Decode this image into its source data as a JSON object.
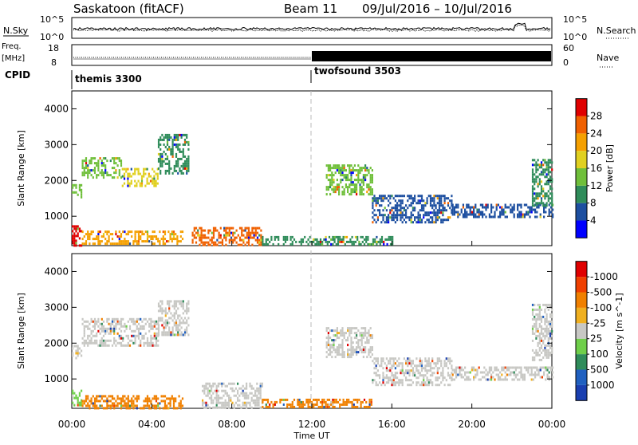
{
  "header": {
    "station": "Saskatoon (fitACF)",
    "beam": "Beam 11",
    "dates": "09/Jul/2016 – 10/Jul/2016"
  },
  "top_panels": {
    "nsky_label": "N.Sky",
    "nsky_ticks": [
      "10^5",
      "10^0"
    ],
    "nsearch_label": "N.Search",
    "nsearch_ticks": [
      "10^5",
      "10^0"
    ],
    "freq_label": "Freq.",
    "freq_unit": "[MHz]",
    "freq_ticks": [
      "18",
      "8"
    ],
    "nave_label": "Nave",
    "nave_ticks": [
      "60",
      "0"
    ],
    "cpid_label": "CPID",
    "modes": [
      {
        "name": "themis 3300",
        "start": 0,
        "end": 12
      },
      {
        "name": "twofsound 3503",
        "start": 12,
        "end": 24
      }
    ]
  },
  "chart_data": [
    {
      "type": "heatmap",
      "panel": "power",
      "ylabel": "Slant Range [km]",
      "xlabel": "Time UT",
      "x_range": [
        0,
        24
      ],
      "y_range": [
        180,
        4500
      ],
      "x_ticks": [
        "00:00",
        "04:00",
        "08:00",
        "12:00",
        "16:00",
        "20:00",
        "00:00"
      ],
      "y_ticks": [
        1000,
        2000,
        3000,
        4000
      ],
      "colorbar": {
        "label": "Power [dB]",
        "ticks": [
          4,
          8,
          12,
          16,
          20,
          24,
          28
        ],
        "colors": [
          "#0000ff",
          "#1d4fa0",
          "#2f8c5a",
          "#6fbf3a",
          "#e0d020",
          "#f5a000",
          "#f06000",
          "#e00000"
        ]
      },
      "echo_bands": [
        {
          "t0": 0.0,
          "t1": 0.5,
          "r0": 1500,
          "r1": 1900,
          "level": 12
        },
        {
          "t0": 0.5,
          "t1": 2.5,
          "r0": 2100,
          "r1": 2650,
          "level": 14
        },
        {
          "t0": 2.5,
          "t1": 4.3,
          "r0": 1850,
          "r1": 2350,
          "level": 18
        },
        {
          "t0": 4.3,
          "t1": 5.8,
          "r0": 2200,
          "r1": 3300,
          "level": 10
        },
        {
          "t0": 0.0,
          "t1": 0.5,
          "r0": 200,
          "r1": 750,
          "level": 28
        },
        {
          "t0": 0.5,
          "t1": 5.5,
          "r0": 200,
          "r1": 600,
          "level": 22
        },
        {
          "t0": 6.0,
          "t1": 9.5,
          "r0": 200,
          "r1": 700,
          "level": 24
        },
        {
          "t0": 9.5,
          "t1": 16.0,
          "r0": 200,
          "r1": 450,
          "level": 8
        },
        {
          "t0": 12.7,
          "t1": 15.0,
          "r0": 1600,
          "r1": 2450,
          "level": 14
        },
        {
          "t0": 15.0,
          "t1": 19.0,
          "r0": 800,
          "r1": 1600,
          "level": 6
        },
        {
          "t0": 19.0,
          "t1": 24.0,
          "r0": 950,
          "r1": 1350,
          "level": 6
        },
        {
          "t0": 23.0,
          "t1": 24.0,
          "r0": 1300,
          "r1": 2600,
          "level": 8
        }
      ]
    },
    {
      "type": "heatmap",
      "panel": "velocity",
      "ylabel": "Slant Range [km]",
      "xlabel": "Time UT",
      "x_range": [
        0,
        24
      ],
      "y_range": [
        180,
        4500
      ],
      "x_ticks": [
        "00:00",
        "04:00",
        "08:00",
        "12:00",
        "16:00",
        "20:00",
        "00:00"
      ],
      "y_ticks": [
        1000,
        2000,
        3000,
        4000
      ],
      "colorbar": {
        "label": "Velocity [m s^-1]",
        "ticks": [
          "1000",
          "500",
          "100",
          "25",
          "-25",
          "-100",
          "-500",
          "-1000"
        ],
        "colors": [
          "#1a3fb0",
          "#2060c0",
          "#2f8c5a",
          "#6fcf4a",
          "#c8c8c4",
          "#f0b020",
          "#f08000",
          "#f04000",
          "#e00000"
        ]
      },
      "echo_bands": [
        {
          "t0": 0.0,
          "t1": 0.5,
          "r0": 1600,
          "r1": 1950,
          "level": "25"
        },
        {
          "t0": 0.5,
          "t1": 4.3,
          "r0": 1950,
          "r1": 2700,
          "level": "25"
        },
        {
          "t0": 4.3,
          "t1": 5.8,
          "r0": 2200,
          "r1": 3200,
          "level": "25"
        },
        {
          "t0": 0.0,
          "t1": 0.5,
          "r0": 250,
          "r1": 700,
          "level": "100"
        },
        {
          "t0": 0.5,
          "t1": 5.5,
          "r0": 200,
          "r1": 550,
          "level": "-100"
        },
        {
          "t0": 6.5,
          "t1": 9.5,
          "r0": 200,
          "r1": 900,
          "level": "25"
        },
        {
          "t0": 9.5,
          "t1": 15.0,
          "r0": 200,
          "r1": 450,
          "level": "-100"
        },
        {
          "t0": 12.7,
          "t1": 15.0,
          "r0": 1600,
          "r1": 2450,
          "level": "25"
        },
        {
          "t0": 15.0,
          "t1": 19.0,
          "r0": 800,
          "r1": 1600,
          "level": "25"
        },
        {
          "t0": 19.0,
          "t1": 24.0,
          "r0": 950,
          "r1": 1350,
          "level": "25"
        },
        {
          "t0": 23.0,
          "t1": 24.0,
          "r0": 1500,
          "r1": 3100,
          "level": "25"
        }
      ]
    }
  ]
}
